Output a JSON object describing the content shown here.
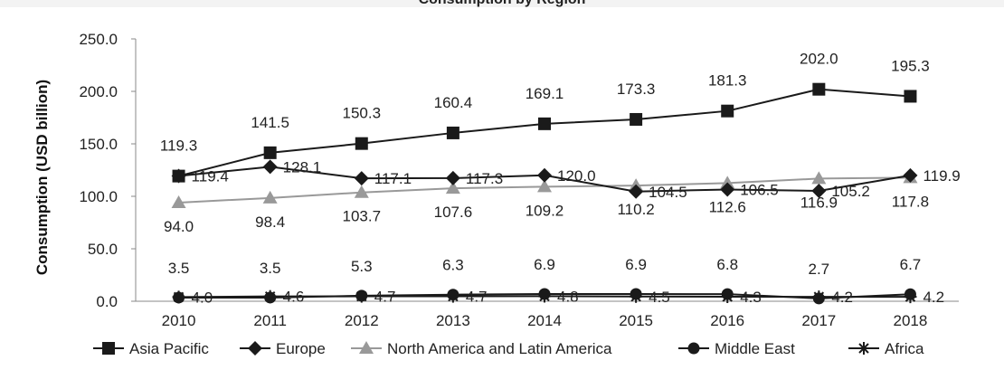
{
  "chart_data": {
    "type": "line",
    "title": "Consumption by Region",
    "xlabel": "",
    "ylabel": "Consumption (USD billion)",
    "categories": [
      "2010",
      "2011",
      "2012",
      "2013",
      "2014",
      "2015",
      "2016",
      "2017",
      "2018"
    ],
    "ylim": [
      0,
      250
    ],
    "yticks": [
      "0.0",
      "50.0",
      "100.0",
      "150.0",
      "200.0",
      "250.0"
    ],
    "grid": false,
    "legend_position": "bottom",
    "series": [
      {
        "name": "Asia Pacific",
        "marker": "square",
        "color": "#1a1a1a",
        "values": [
          119.3,
          141.5,
          150.3,
          160.4,
          169.1,
          173.3,
          181.3,
          202.0,
          195.3
        ],
        "labels": [
          "119.3",
          "141.5",
          "150.3",
          "160.4",
          "169.1",
          "173.3",
          "181.3",
          "202.0",
          "195.3"
        ]
      },
      {
        "name": "Europe",
        "marker": "diamond",
        "color": "#1a1a1a",
        "values": [
          119.4,
          128.1,
          117.1,
          117.3,
          120.0,
          104.5,
          106.5,
          105.2,
          119.9
        ],
        "labels": [
          "119.4",
          "128.1",
          "117.1",
          "117.3",
          "120.0",
          "104.5",
          "106.5",
          "105.2",
          "119.9"
        ]
      },
      {
        "name": "North America and Latin America",
        "marker": "triangle",
        "color": "#999999",
        "values": [
          94.0,
          98.4,
          103.7,
          107.6,
          109.2,
          110.2,
          112.6,
          116.9,
          117.8
        ],
        "labels": [
          "94.0",
          "98.4",
          "103.7",
          "107.6",
          "109.2",
          "110.2",
          "112.6",
          "116.9",
          "117.8"
        ]
      },
      {
        "name": "Middle East",
        "marker": "circle",
        "color": "#1a1a1a",
        "values": [
          3.5,
          3.5,
          5.3,
          6.3,
          6.9,
          6.9,
          6.8,
          2.7,
          6.7
        ],
        "labels": [
          "3.5",
          "3.5",
          "5.3",
          "6.3",
          "6.9",
          "6.9",
          "6.8",
          "2.7",
          "6.7"
        ]
      },
      {
        "name": "Africa",
        "marker": "asterisk",
        "color": "#1a1a1a",
        "values": [
          4.0,
          4.6,
          4.7,
          4.7,
          4.8,
          4.5,
          4.3,
          4.2,
          4.2
        ],
        "labels": [
          "4.0",
          "4.6",
          "4.7",
          "4.7",
          "4.8",
          "4.5",
          "4.3",
          "4.2",
          "4.2"
        ]
      }
    ]
  }
}
